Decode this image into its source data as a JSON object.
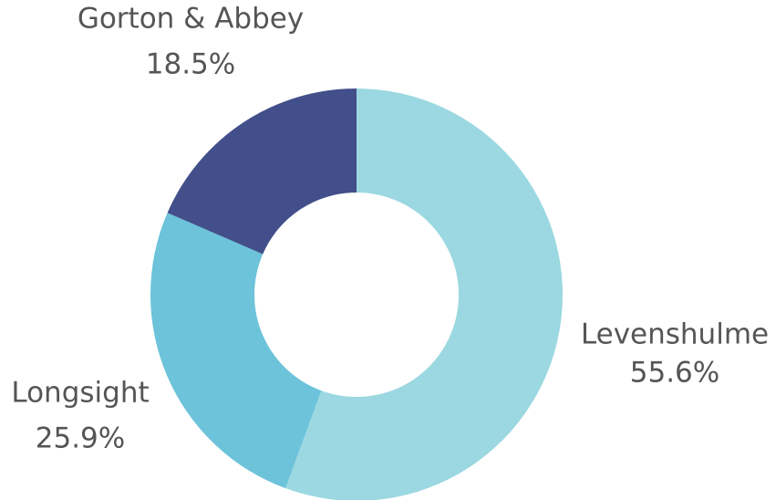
{
  "chart_data": {
    "type": "donut",
    "categories": [
      "Levenshulme",
      "Longsight",
      "Gorton & Abbey"
    ],
    "values": [
      55.6,
      25.9,
      18.5
    ],
    "value_labels": [
      "55.6%",
      "25.9%",
      "18.5%"
    ],
    "colors": [
      "#9bd8e1",
      "#6cc3da",
      "#424f8a"
    ]
  }
}
